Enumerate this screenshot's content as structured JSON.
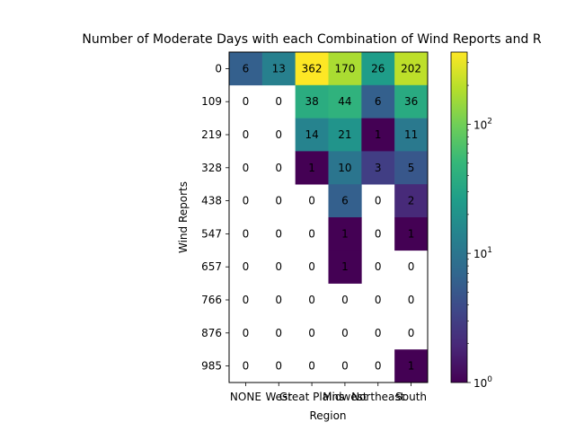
{
  "chart_data": {
    "type": "heatmap",
    "title": "Number of Moderate Days with each Combination of Wind Reports and R",
    "xlabel": "Region",
    "ylabel": "Wind Reports",
    "x_categories": [
      "NONE",
      "West",
      "Great Plains",
      "Midwest",
      "Northeast",
      "South"
    ],
    "y_categories": [
      "0",
      "109",
      "219",
      "328",
      "438",
      "547",
      "657",
      "766",
      "876",
      "985"
    ],
    "values": [
      [
        6,
        13,
        362,
        170,
        26,
        202
      ],
      [
        0,
        0,
        38,
        44,
        6,
        36
      ],
      [
        0,
        0,
        14,
        21,
        1,
        11
      ],
      [
        0,
        0,
        1,
        10,
        3,
        5
      ],
      [
        0,
        0,
        0,
        6,
        0,
        2
      ],
      [
        0,
        0,
        0,
        1,
        0,
        1
      ],
      [
        0,
        0,
        0,
        1,
        0,
        0
      ],
      [
        0,
        0,
        0,
        0,
        0,
        0
      ],
      [
        0,
        0,
        0,
        0,
        0,
        0
      ],
      [
        0,
        0,
        0,
        0,
        0,
        1
      ]
    ],
    "color_scale": "log",
    "colormap": "viridis",
    "zero_cells": "blank (white)",
    "colorbar": {
      "range": [
        1,
        362
      ],
      "tick_values": [
        1,
        10,
        100
      ],
      "tick_labels": [
        "10^0",
        "10^1",
        "10^2"
      ]
    }
  }
}
